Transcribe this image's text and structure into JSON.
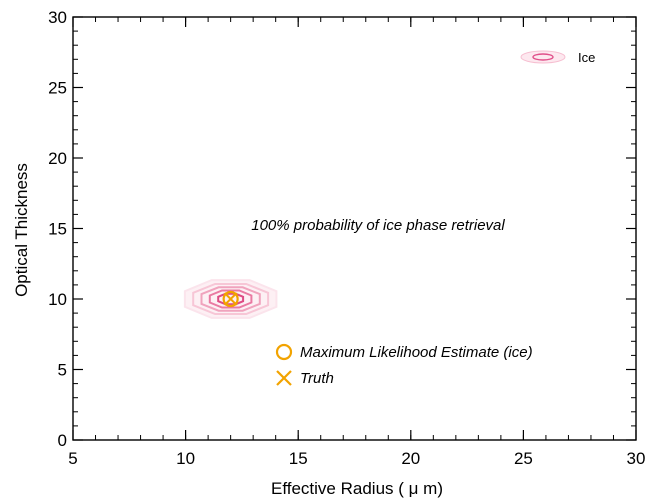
{
  "chart_data": {
    "type": "contour",
    "xlabel": "Effective Radius ( μ m)",
    "ylabel": "Optical Thickness",
    "xlim": [
      5,
      30
    ],
    "ylim": [
      0,
      30
    ],
    "x_ticks": [
      5,
      10,
      15,
      20,
      25,
      30
    ],
    "y_ticks": [
      0,
      5,
      10,
      15,
      20,
      25,
      30
    ],
    "x_minor_step": 1,
    "y_minor_step": 1,
    "grid": false,
    "annotation": "100% probability of ice phase retrieval",
    "contour_center": {
      "x": 12,
      "y": 10
    },
    "contour_levels": [
      {
        "rx": 2.2,
        "ry": 1.45,
        "color": "#fbe4ec"
      },
      {
        "rx": 1.8,
        "ry": 1.15,
        "color": "#f7c6d6"
      },
      {
        "rx": 1.4,
        "ry": 0.9,
        "color": "#f0a3bd"
      },
      {
        "rx": 1.0,
        "ry": 0.65,
        "color": "#e97aa2"
      },
      {
        "rx": 0.6,
        "ry": 0.4,
        "color": "#de4b84"
      }
    ],
    "mle": {
      "x": 12,
      "y": 10
    },
    "truth": {
      "x": 12,
      "y": 10
    },
    "legend": [
      {
        "marker": "circle",
        "label": "Maximum Likelihood Estimate (ice)",
        "color": "#f2a300"
      },
      {
        "marker": "x",
        "label": "Truth",
        "color": "#f2a300"
      }
    ],
    "ice_key": {
      "label": "Ice",
      "color": "#e0508a"
    }
  }
}
